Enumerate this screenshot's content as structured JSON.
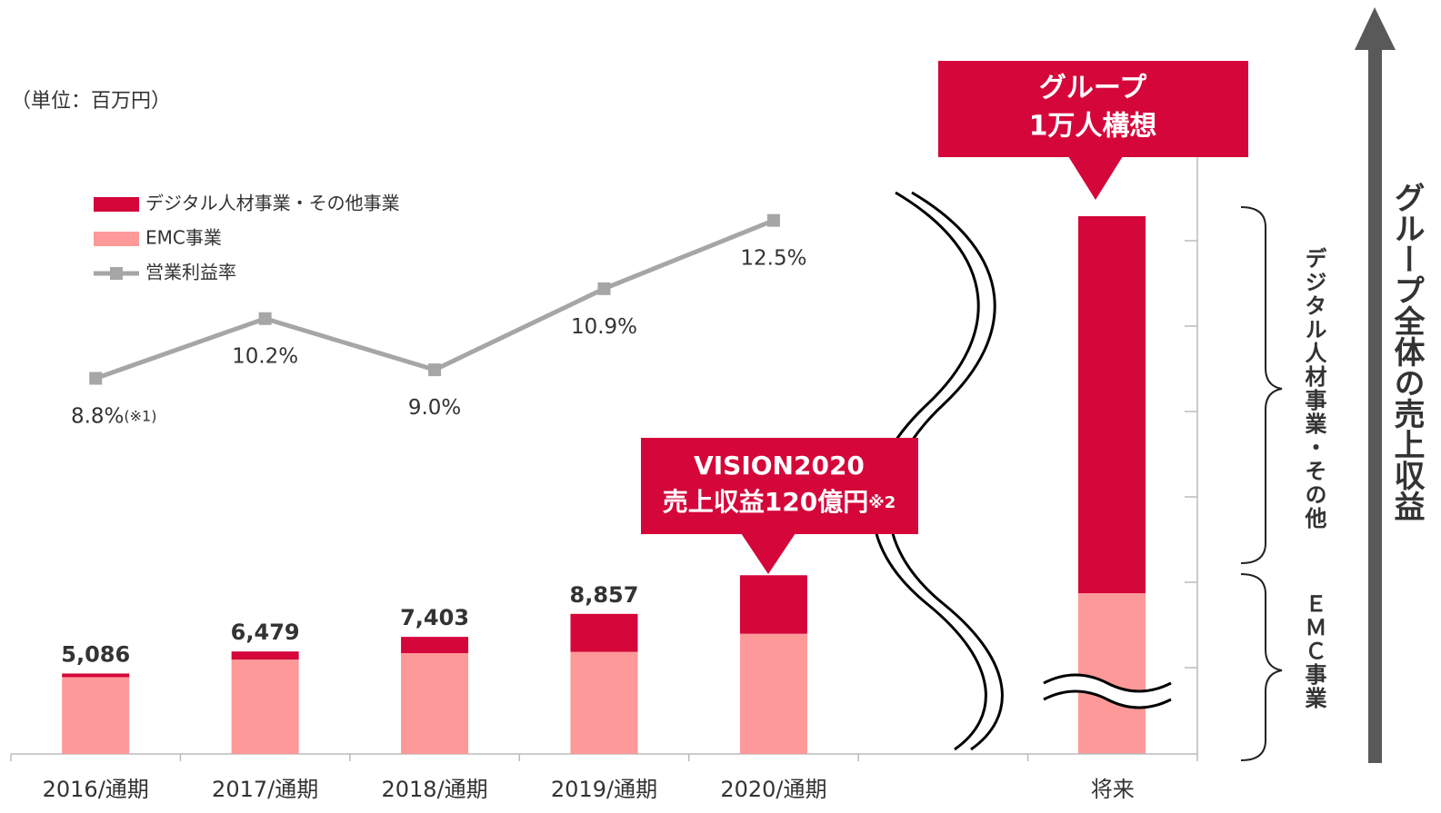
{
  "chart_data": {
    "type": "bar",
    "unit": "（単位：百万円）",
    "categories": [
      "2016/通期",
      "2017/通期",
      "2018/通期",
      "2019/通期",
      "2020/通期",
      null,
      "将来"
    ],
    "series": [
      {
        "name": "EMC事業",
        "color": "#fd9999",
        "values": [
          4856,
          5969,
          6373,
          6457,
          7600,
          null,
          null
        ]
      },
      {
        "name": "デジタル人材事業・その他事業",
        "color": "#d5063a",
        "values": [
          230,
          510,
          1030,
          2400,
          3700,
          null,
          null
        ]
      },
      {
        "name": "営業利益率",
        "color": "#a6a6a6",
        "type": "line",
        "axis": "y2",
        "values": [
          8.8,
          10.2,
          9.0,
          10.9,
          12.5,
          null,
          null
        ],
        "value_labels": [
          "8.8%",
          "10.2%",
          "9.0%",
          "10.9%",
          "12.5%",
          null,
          null
        ],
        "note": "(※1)"
      }
    ],
    "totals": [
      5086,
      6479,
      7403,
      8857,
      null,
      null,
      null
    ],
    "total_labels": [
      "5,086",
      "6,479",
      "7,403",
      "8,857",
      null,
      null,
      null
    ],
    "ylim": [
      0,
      44800
    ],
    "y2lim": [
      0,
      16.6
    ],
    "callouts": [
      {
        "lines": [
          "VISION2020",
          "売上収益120億円"
        ],
        "note": "※2"
      },
      {
        "lines": [
          "グループ",
          "1万人構想"
        ]
      }
    ],
    "brace_labels": [
      "デジタル人材事業・その他",
      "ＥＭＣ事業"
    ],
    "arrow_label": "グループ全体の売上収益"
  }
}
